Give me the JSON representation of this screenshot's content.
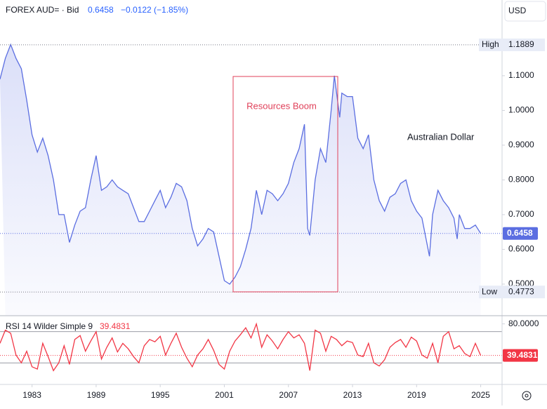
{
  "chart_data": [
    {
      "type": "line",
      "title": "FOREX AUD= · Bid",
      "last_value": 0.6458,
      "change": "−0.0122 (−1.85%)",
      "currency": "USD",
      "annotation": "Resources Boom",
      "series_label": "Australian Dollar",
      "high_label": "High",
      "high": 1.1889,
      "low_label": "Low",
      "low": 0.4773,
      "color": "#5b6ee1",
      "xlim": [
        1980,
        2027
      ],
      "ylim": [
        0.409,
        1.318
      ],
      "yticks": [
        {
          "value": 0.5,
          "label": "0.5000"
        },
        {
          "value": 0.6,
          "label": "0.6000"
        },
        {
          "value": 0.7,
          "label": "0.7000"
        },
        {
          "value": 0.8,
          "label": "0.8000"
        },
        {
          "value": 0.9,
          "label": "0.9000"
        },
        {
          "value": 1.0,
          "label": "1.0000"
        },
        {
          "value": 1.1,
          "label": "1.1000"
        }
      ],
      "x": [
        1980.0,
        1980.5,
        1981.0,
        1981.5,
        1982.0,
        1982.5,
        1983.0,
        1983.5,
        1984.0,
        1984.5,
        1985.0,
        1985.5,
        1986.0,
        1986.5,
        1987.0,
        1987.5,
        1988.0,
        1988.5,
        1989.0,
        1989.5,
        1990.0,
        1990.5,
        1991.0,
        1991.5,
        1992.0,
        1992.5,
        1993.0,
        1993.5,
        1994.0,
        1994.5,
        1995.0,
        1995.5,
        1996.0,
        1996.5,
        1997.0,
        1997.5,
        1998.0,
        1998.5,
        1999.0,
        1999.5,
        2000.0,
        2000.5,
        2001.0,
        2001.5,
        2002.0,
        2002.5,
        2003.0,
        2003.5,
        2004.0,
        2004.5,
        2005.0,
        2005.5,
        2006.0,
        2006.5,
        2007.0,
        2007.5,
        2008.0,
        2008.5,
        2008.8,
        2009.0,
        2009.5,
        2010.0,
        2010.5,
        2011.0,
        2011.3,
        2011.8,
        2012.0,
        2012.5,
        2013.0,
        2013.5,
        2014.0,
        2014.5,
        2015.0,
        2015.5,
        2016.0,
        2016.5,
        2017.0,
        2017.5,
        2018.0,
        2018.5,
        2019.0,
        2019.5,
        2020.2,
        2020.5,
        2021.0,
        2021.5,
        2022.0,
        2022.5,
        2022.8,
        2023.0,
        2023.5,
        2024.0,
        2024.5,
        2025.0
      ],
      "values": [
        1.09,
        1.15,
        1.19,
        1.15,
        1.12,
        1.03,
        0.93,
        0.88,
        0.92,
        0.87,
        0.8,
        0.7,
        0.7,
        0.62,
        0.67,
        0.71,
        0.72,
        0.8,
        0.87,
        0.77,
        0.78,
        0.8,
        0.78,
        0.77,
        0.76,
        0.72,
        0.68,
        0.68,
        0.71,
        0.74,
        0.77,
        0.72,
        0.75,
        0.79,
        0.78,
        0.74,
        0.66,
        0.61,
        0.63,
        0.66,
        0.65,
        0.58,
        0.51,
        0.5,
        0.52,
        0.55,
        0.6,
        0.66,
        0.77,
        0.7,
        0.77,
        0.76,
        0.74,
        0.76,
        0.79,
        0.85,
        0.89,
        0.96,
        0.66,
        0.64,
        0.8,
        0.89,
        0.85,
        1.0,
        1.1,
        0.98,
        1.05,
        1.04,
        1.04,
        0.92,
        0.89,
        0.93,
        0.8,
        0.74,
        0.71,
        0.75,
        0.76,
        0.79,
        0.8,
        0.74,
        0.71,
        0.69,
        0.58,
        0.7,
        0.77,
        0.74,
        0.72,
        0.69,
        0.63,
        0.7,
        0.66,
        0.66,
        0.67,
        0.6458
      ]
    },
    {
      "type": "line",
      "title": "RSI 14 Wilder Simple 9",
      "last_value": 39.4831,
      "color": "#f23645",
      "bands": [
        70,
        30
      ],
      "xlim": [
        1980,
        2027
      ],
      "ylim": [
        2.3,
        90.5
      ],
      "yticks": [
        {
          "value": 80,
          "label": "80.0000"
        }
      ],
      "xticks": [
        1983,
        1989,
        1995,
        2001,
        2007,
        2013,
        2019,
        2025
      ],
      "x": [
        1980.0,
        1980.5,
        1981.0,
        1981.5,
        1982.0,
        1982.5,
        1983.0,
        1983.5,
        1984.0,
        1984.5,
        1985.0,
        1985.5,
        1986.0,
        1986.5,
        1987.0,
        1987.5,
        1988.0,
        1988.5,
        1989.0,
        1989.5,
        1990.0,
        1990.5,
        1991.0,
        1991.5,
        1992.0,
        1992.5,
        1993.0,
        1993.5,
        1994.0,
        1994.5,
        1995.0,
        1995.5,
        1996.0,
        1996.5,
        1997.0,
        1997.5,
        1998.0,
        1998.5,
        1999.0,
        1999.5,
        2000.0,
        2000.5,
        2001.0,
        2001.5,
        2002.0,
        2002.5,
        2003.0,
        2003.5,
        2004.0,
        2004.5,
        2005.0,
        2005.5,
        2006.0,
        2006.5,
        2007.0,
        2007.5,
        2008.0,
        2008.5,
        2009.0,
        2009.5,
        2010.0,
        2010.5,
        2011.0,
        2011.5,
        2012.0,
        2012.5,
        2013.0,
        2013.5,
        2014.0,
        2014.5,
        2015.0,
        2015.5,
        2016.0,
        2016.5,
        2017.0,
        2017.5,
        2018.0,
        2018.5,
        2019.0,
        2019.5,
        2020.0,
        2020.5,
        2021.0,
        2021.5,
        2022.0,
        2022.5,
        2023.0,
        2023.5,
        2024.0,
        2024.5,
        2025.0
      ],
      "values": [
        55,
        72,
        68,
        40,
        30,
        45,
        25,
        22,
        55,
        38,
        20,
        30,
        52,
        28,
        60,
        65,
        45,
        58,
        70,
        35,
        50,
        62,
        44,
        55,
        48,
        38,
        30,
        52,
        60,
        57,
        64,
        40,
        55,
        68,
        50,
        36,
        25,
        40,
        48,
        60,
        46,
        28,
        22,
        45,
        58,
        66,
        75,
        62,
        80,
        50,
        66,
        58,
        48,
        60,
        70,
        62,
        66,
        55,
        20,
        72,
        68,
        45,
        64,
        60,
        52,
        58,
        56,
        40,
        38,
        55,
        30,
        26,
        34,
        50,
        56,
        60,
        50,
        63,
        58,
        40,
        36,
        55,
        30,
        64,
        70,
        48,
        52,
        42,
        38,
        55,
        39.4831
      ]
    }
  ]
}
